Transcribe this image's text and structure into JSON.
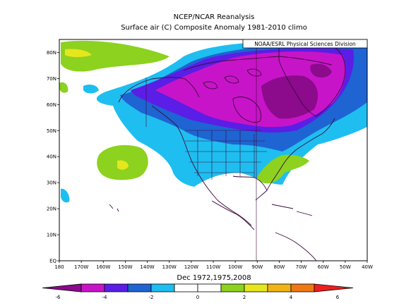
{
  "figure": {
    "title_line1": "NCEP/NCAR Reanalysis",
    "title_line2": "Surface air (C) Composite Anomaly 1981-2010 climo",
    "credit": "NOAA/ESRL Physical Sciences Division",
    "caption": "Dec 1972,1975,2008"
  },
  "map": {
    "lat_labels": [
      "EQ",
      "10N",
      "20N",
      "30N",
      "40N",
      "50N",
      "60N",
      "70N",
      "80N"
    ],
    "lon_labels": [
      "180",
      "170W",
      "160W",
      "150W",
      "140W",
      "130W",
      "120W",
      "110W",
      "100W",
      "90W",
      "80W",
      "70W",
      "60W",
      "50W",
      "40W"
    ],
    "lat_range": [
      0,
      85
    ],
    "lon_range": [
      -180,
      -40
    ]
  },
  "colorbar": {
    "tick_labels": [
      "-6",
      "-4",
      "-2",
      "0",
      "2",
      "4",
      "6"
    ],
    "colors": [
      "#8c0a8c",
      "#c814c8",
      "#5a1ee6",
      "#1e64d2",
      "#1ebef0",
      "#ffffff",
      "#ffffff",
      "#8cd21e",
      "#e6e61e",
      "#f0b414",
      "#f07814",
      "#f01e1e"
    ]
  },
  "colors": {
    "land_outline": "#3c0a3c",
    "grid_line": "#3c0a3c"
  }
}
